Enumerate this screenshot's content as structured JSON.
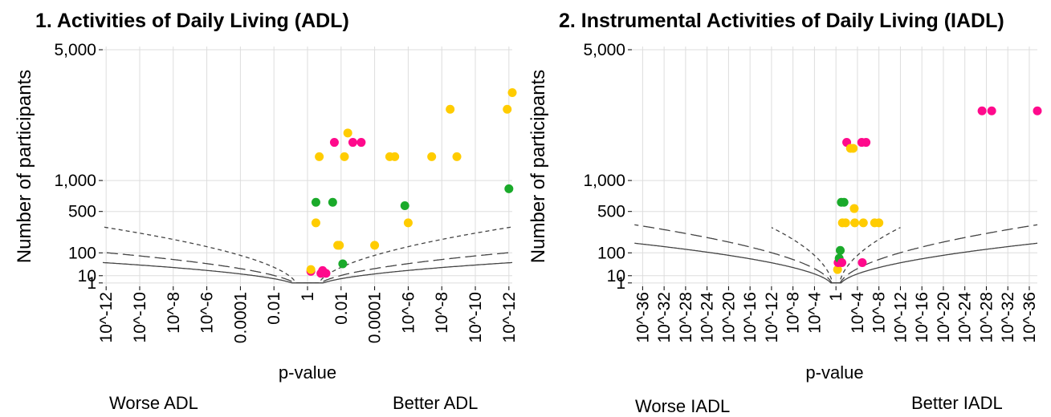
{
  "chart_data": [
    {
      "type": "scatter",
      "title": "1. Activities of Daily Living (ADL)",
      "xlabel": "p-value",
      "ylabel": "Number of participants",
      "y_scale": "sqrt",
      "ylim": [
        0,
        5000
      ],
      "y_ticks": [
        {
          "value": 5000,
          "label": "5,000"
        },
        {
          "value": 1000,
          "label": "1,000"
        },
        {
          "value": 500,
          "label": "500"
        },
        {
          "value": 100,
          "label": "100"
        },
        {
          "value": 10,
          "label": "10"
        },
        {
          "value": 1,
          "label": "1"
        }
      ],
      "x_scale": "signed -log10(p)",
      "xlim": [
        -12.2,
        12.2
      ],
      "x_ticks": [
        {
          "value": -12,
          "label": "10^-12"
        },
        {
          "value": -10,
          "label": "10^-10"
        },
        {
          "value": -8,
          "label": "10^-8"
        },
        {
          "value": -6,
          "label": "10^-6"
        },
        {
          "value": -4,
          "label": "0.0001"
        },
        {
          "value": -2,
          "label": "0.01"
        },
        {
          "value": 0,
          "label": "1"
        },
        {
          "value": 2,
          "label": "0.01"
        },
        {
          "value": 4,
          "label": "0.0001"
        },
        {
          "value": 6,
          "label": "10^-6"
        },
        {
          "value": 8,
          "label": "10^-8"
        },
        {
          "value": 10,
          "label": "10^-10"
        },
        {
          "value": 12,
          "label": "10^-12"
        }
      ],
      "grid": true,
      "direction_labels": {
        "left": "Worse ADL",
        "right": "Better ADL"
      },
      "reference_curves": [
        {
          "style": "solid",
          "z": 1,
          "max_abs_x": 12.2
        },
        {
          "style": "long-dash",
          "z": 0.7,
          "max_abs_x": 12.2
        },
        {
          "style": "short-dash",
          "z": 0.4,
          "max_abs_x": 12.2
        }
      ],
      "colors": {
        "magenta": "#ff0a8c",
        "yellow": "#ffcc00",
        "green": "#1aaa2a",
        "curve": "#444444",
        "grid": "#dddddd"
      },
      "points": [
        {
          "x": 0.2,
          "n": 20,
          "color": "magenta"
        },
        {
          "x": 0.2,
          "n": 25,
          "color": "yellow"
        },
        {
          "x": 0.5,
          "n": 360,
          "color": "yellow"
        },
        {
          "x": 0.5,
          "n": 630,
          "color": "green"
        },
        {
          "x": 0.7,
          "n": 1500,
          "color": "yellow"
        },
        {
          "x": 0.8,
          "n": 15,
          "color": "magenta"
        },
        {
          "x": 0.9,
          "n": 22,
          "color": "magenta"
        },
        {
          "x": 1.1,
          "n": 15,
          "color": "magenta"
        },
        {
          "x": 1.5,
          "n": 630,
          "color": "green"
        },
        {
          "x": 1.6,
          "n": 1850,
          "color": "magenta"
        },
        {
          "x": 1.8,
          "n": 150,
          "color": "yellow"
        },
        {
          "x": 1.9,
          "n": 150,
          "color": "yellow"
        },
        {
          "x": 2.1,
          "n": 45,
          "color": "green"
        },
        {
          "x": 2.2,
          "n": 1500,
          "color": "yellow"
        },
        {
          "x": 2.4,
          "n": 2100,
          "color": "yellow"
        },
        {
          "x": 2.7,
          "n": 1850,
          "color": "magenta"
        },
        {
          "x": 3.2,
          "n": 1850,
          "color": "magenta"
        },
        {
          "x": 4.0,
          "n": 150,
          "color": "yellow"
        },
        {
          "x": 4.9,
          "n": 1500,
          "color": "yellow"
        },
        {
          "x": 5.2,
          "n": 1500,
          "color": "yellow"
        },
        {
          "x": 5.8,
          "n": 580,
          "color": "green"
        },
        {
          "x": 6.0,
          "n": 360,
          "color": "yellow"
        },
        {
          "x": 7.4,
          "n": 1500,
          "color": "yellow"
        },
        {
          "x": 8.5,
          "n": 2800,
          "color": "yellow"
        },
        {
          "x": 8.9,
          "n": 1500,
          "color": "yellow"
        },
        {
          "x": 11.9,
          "n": 2800,
          "color": "yellow"
        },
        {
          "x": 12.0,
          "n": 850,
          "color": "green"
        },
        {
          "x": 12.2,
          "n": 3350,
          "color": "yellow"
        }
      ]
    },
    {
      "type": "scatter",
      "title": "2. Instrumental Activities of Daily Living (IADL)",
      "xlabel": "p-value",
      "ylabel": "Number of participants",
      "y_scale": "sqrt",
      "ylim": [
        0,
        5000
      ],
      "y_ticks": [
        {
          "value": 5000,
          "label": "5,000"
        },
        {
          "value": 1000,
          "label": "1,000"
        },
        {
          "value": 500,
          "label": "500"
        },
        {
          "value": 100,
          "label": "100"
        },
        {
          "value": 10,
          "label": "10"
        },
        {
          "value": 1,
          "label": "1"
        }
      ],
      "x_scale": "signed -log10(p)",
      "xlim": [
        -38,
        37.5
      ],
      "x_ticks": [
        {
          "value": -36,
          "label": "10^-36"
        },
        {
          "value": -32,
          "label": "10^-32"
        },
        {
          "value": -28,
          "label": "10^-28"
        },
        {
          "value": -24,
          "label": "10^-24"
        },
        {
          "value": -20,
          "label": "10^-20"
        },
        {
          "value": -16,
          "label": "10^-16"
        },
        {
          "value": -12,
          "label": "10^-12"
        },
        {
          "value": -8,
          "label": "10^-8"
        },
        {
          "value": -4,
          "label": "10^-4"
        },
        {
          "value": 0,
          "label": "1"
        },
        {
          "value": 4,
          "label": "10^-4"
        },
        {
          "value": 8,
          "label": "10^-8"
        },
        {
          "value": 12,
          "label": "10^-12"
        },
        {
          "value": 16,
          "label": "10^-16"
        },
        {
          "value": 20,
          "label": "10^-20"
        },
        {
          "value": 24,
          "label": "10^-24"
        },
        {
          "value": 28,
          "label": "10^-28"
        },
        {
          "value": 32,
          "label": "10^-32"
        },
        {
          "value": 36,
          "label": "10^-36"
        }
      ],
      "grid": true,
      "direction_labels": {
        "left": "Worse IADL",
        "right": "Better IADL"
      },
      "reference_curves": [
        {
          "style": "solid",
          "z": 1,
          "max_abs_x": 37.5
        },
        {
          "style": "long-dash",
          "z": 0.7,
          "max_abs_x": 37.5
        },
        {
          "style": "short-dash",
          "z": 0.4,
          "max_abs_x": 12
        }
      ],
      "colors": {
        "magenta": "#ff0a8c",
        "yellow": "#ffcc00",
        "green": "#1aaa2a",
        "curve": "#444444",
        "grid": "#dddddd"
      },
      "points": [
        {
          "x": 0.3,
          "n": 25,
          "color": "yellow"
        },
        {
          "x": 0.4,
          "n": 50,
          "color": "magenta"
        },
        {
          "x": 0.6,
          "n": 70,
          "color": "green"
        },
        {
          "x": 0.8,
          "n": 115,
          "color": "green"
        },
        {
          "x": 1.0,
          "n": 630,
          "color": "green"
        },
        {
          "x": 1.1,
          "n": 50,
          "color": "magenta"
        },
        {
          "x": 1.2,
          "n": 360,
          "color": "yellow"
        },
        {
          "x": 1.5,
          "n": 630,
          "color": "green"
        },
        {
          "x": 1.8,
          "n": 360,
          "color": "yellow"
        },
        {
          "x": 2.0,
          "n": 1850,
          "color": "magenta"
        },
        {
          "x": 2.7,
          "n": 1700,
          "color": "yellow"
        },
        {
          "x": 3.2,
          "n": 1700,
          "color": "yellow"
        },
        {
          "x": 3.4,
          "n": 540,
          "color": "yellow"
        },
        {
          "x": 3.5,
          "n": 360,
          "color": "yellow"
        },
        {
          "x": 4.8,
          "n": 1850,
          "color": "magenta"
        },
        {
          "x": 4.9,
          "n": 50,
          "color": "magenta"
        },
        {
          "x": 5.1,
          "n": 360,
          "color": "yellow"
        },
        {
          "x": 5.6,
          "n": 1850,
          "color": "magenta"
        },
        {
          "x": 7.2,
          "n": 360,
          "color": "yellow"
        },
        {
          "x": 8.0,
          "n": 360,
          "color": "yellow"
        },
        {
          "x": 27.2,
          "n": 2750,
          "color": "magenta"
        },
        {
          "x": 29.0,
          "n": 2750,
          "color": "magenta"
        },
        {
          "x": 37.5,
          "n": 2750,
          "color": "magenta"
        }
      ]
    }
  ]
}
